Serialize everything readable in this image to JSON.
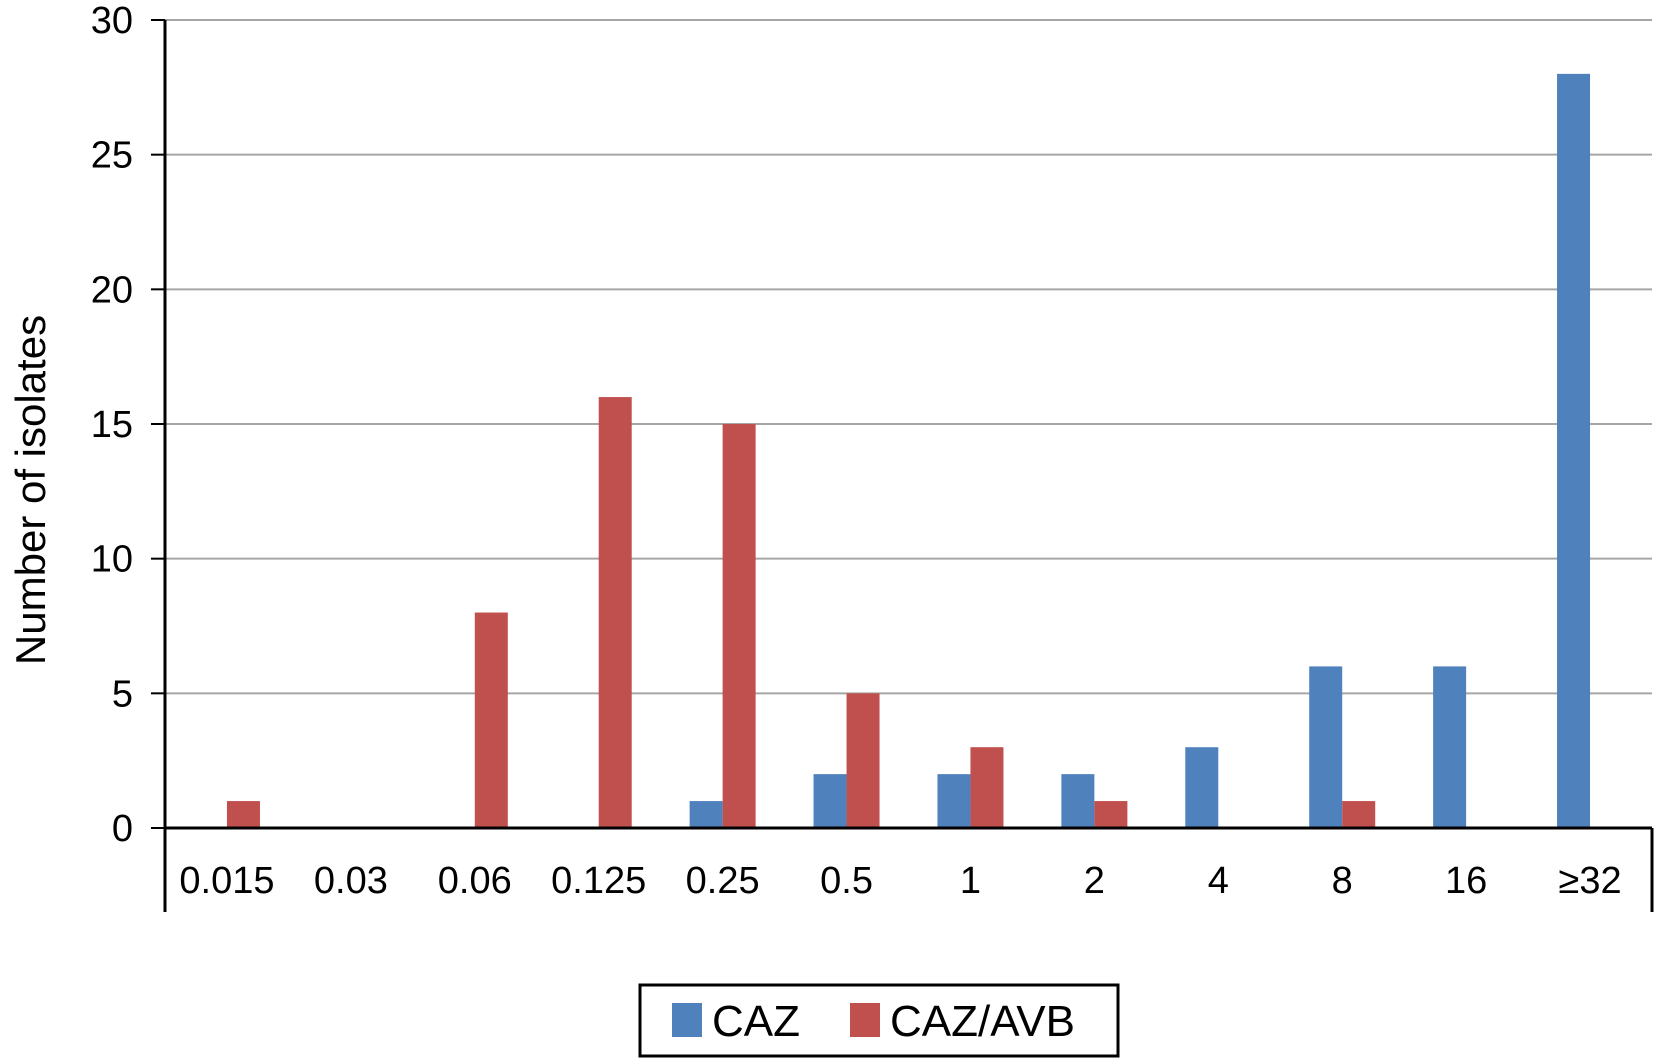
{
  "chart_data": {
    "type": "bar",
    "title": "",
    "xlabel": "",
    "ylabel": "Number of isolates",
    "ylim": [
      0,
      30
    ],
    "yticks": [
      "0",
      "5",
      "10",
      "15",
      "20",
      "25",
      "30"
    ],
    "grid": true,
    "legend_position": "bottom",
    "categories": [
      "0.015",
      "0.03",
      "0.06",
      "0.125",
      "0.25",
      "0.5",
      "1",
      "2",
      "4",
      "8",
      "16",
      "≥32"
    ],
    "series": [
      {
        "name": "CAZ",
        "color": "#4f81bd",
        "values": [
          0,
          0,
          0,
          0,
          1,
          2,
          2,
          2,
          3,
          6,
          6,
          28
        ]
      },
      {
        "name": "CAZ/AVB",
        "color": "#c0504d",
        "values": [
          1,
          0,
          8,
          16,
          15,
          5,
          3,
          1,
          0,
          1,
          0,
          0
        ]
      }
    ]
  }
}
